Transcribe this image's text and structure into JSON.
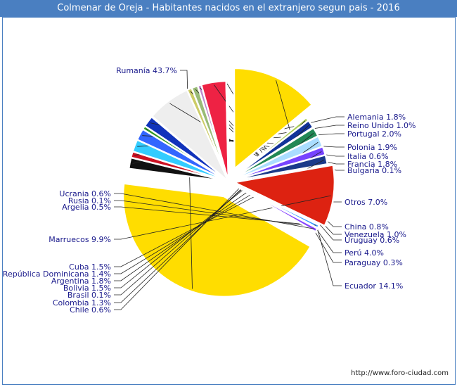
{
  "chart_data": {
    "type": "pie",
    "title": "Colmenar de Oreja - Habitantes nacidos en el extranjero segun pais - 2016",
    "slices": [
      {
        "label": "Rumanía",
        "pct_text": "43.7%",
        "value": 43.7,
        "color": "#ffdd00"
      },
      {
        "label": "Alemania",
        "pct_text": "1.8%",
        "value": 1.8,
        "color": "#111111"
      },
      {
        "label": "Reino Unido",
        "pct_text": "1.0%",
        "value": 1.0,
        "color": "#cc1122"
      },
      {
        "label": "Portugal",
        "pct_text": "2.0%",
        "value": 2.0,
        "color": "#33ccff"
      },
      {
        "label": "Polonia",
        "pct_text": "1.9%",
        "value": 1.9,
        "color": "#3366ff"
      },
      {
        "label": "Italia",
        "pct_text": "0.6%",
        "value": 0.6,
        "color": "#339922"
      },
      {
        "label": "Francia",
        "pct_text": "1.8%",
        "value": 1.8,
        "color": "#1133bb"
      },
      {
        "label": "Bulgaria",
        "pct_text": "0.1%",
        "value": 0.1,
        "color": "#66aaff"
      },
      {
        "label": "Otros",
        "pct_text": "7.0%",
        "value": 7.0,
        "color": "#eeeeee"
      },
      {
        "label": "China",
        "pct_text": "0.8%",
        "value": 0.8,
        "color": "#cccc66"
      },
      {
        "label": "Venezuela",
        "pct_text": "1.0%",
        "value": 1.0,
        "color": "#99bb77"
      },
      {
        "label": "Uruguay",
        "pct_text": "0.6%",
        "value": 0.6,
        "color": "#bb88cc"
      },
      {
        "label": "Perú",
        "pct_text": "4.0%",
        "value": 4.0,
        "color": "#ee2244"
      },
      {
        "label": "Paraguay",
        "pct_text": "0.3%",
        "value": 0.3,
        "color": "#77dddd"
      },
      {
        "label": "Ecuador",
        "pct_text": "14.1%",
        "value": 14.1,
        "color": "#ffdd00"
      },
      {
        "label": "Chile",
        "pct_text": "0.6%",
        "value": 0.6,
        "color": "#aacc55"
      },
      {
        "label": "Colombia",
        "pct_text": "1.3%",
        "value": 1.3,
        "color": "#113399"
      },
      {
        "label": "Brasil",
        "pct_text": "0.1%",
        "value": 0.1,
        "color": "#66ddbb"
      },
      {
        "label": "Bolivia",
        "pct_text": "1.5%",
        "value": 1.5,
        "color": "#228855"
      },
      {
        "label": "Argentina",
        "pct_text": "1.8%",
        "value": 1.8,
        "color": "#aaddff"
      },
      {
        "label": "República Dominicana",
        "pct_text": "1.4%",
        "value": 1.4,
        "color": "#7744ff"
      },
      {
        "label": "Cuba",
        "pct_text": "1.5%",
        "value": 1.5,
        "color": "#1a3a8a"
      },
      {
        "label": "Marruecos",
        "pct_text": "9.9%",
        "value": 9.9,
        "color": "#dd2211"
      },
      {
        "label": "Argelia",
        "pct_text": "0.5%",
        "value": 0.5,
        "color": "#3399ff"
      },
      {
        "label": "Rusia",
        "pct_text": "0.1%",
        "value": 0.1,
        "color": "#ffcc66"
      },
      {
        "label": "Ucrania",
        "pct_text": "0.6%",
        "value": 0.6,
        "color": "#8844ff"
      }
    ]
  },
  "footer": {
    "credit": "http://www.foro-ciudad.com"
  }
}
